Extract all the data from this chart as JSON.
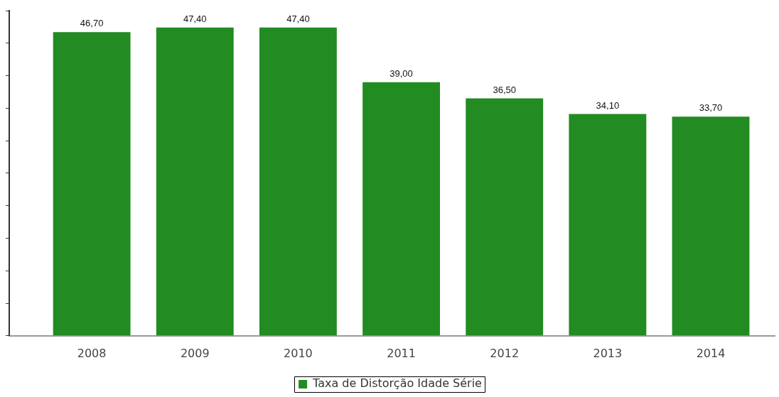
{
  "chart_data": {
    "type": "bar",
    "categories": [
      "2008",
      "2009",
      "2010",
      "2011",
      "2012",
      "2013",
      "2014"
    ],
    "series": [
      {
        "name": "Taxa de Distorção Idade Série",
        "color": "#228b22",
        "values": [
          46.7,
          47.4,
          47.4,
          39.0,
          36.5,
          34.1,
          33.7
        ],
        "value_labels": [
          "46,70",
          "47,40",
          "47,40",
          "39,00",
          "36,50",
          "34,10",
          "33,70"
        ]
      }
    ],
    "tick_labels": "x",
    "legend": "bottom"
  }
}
